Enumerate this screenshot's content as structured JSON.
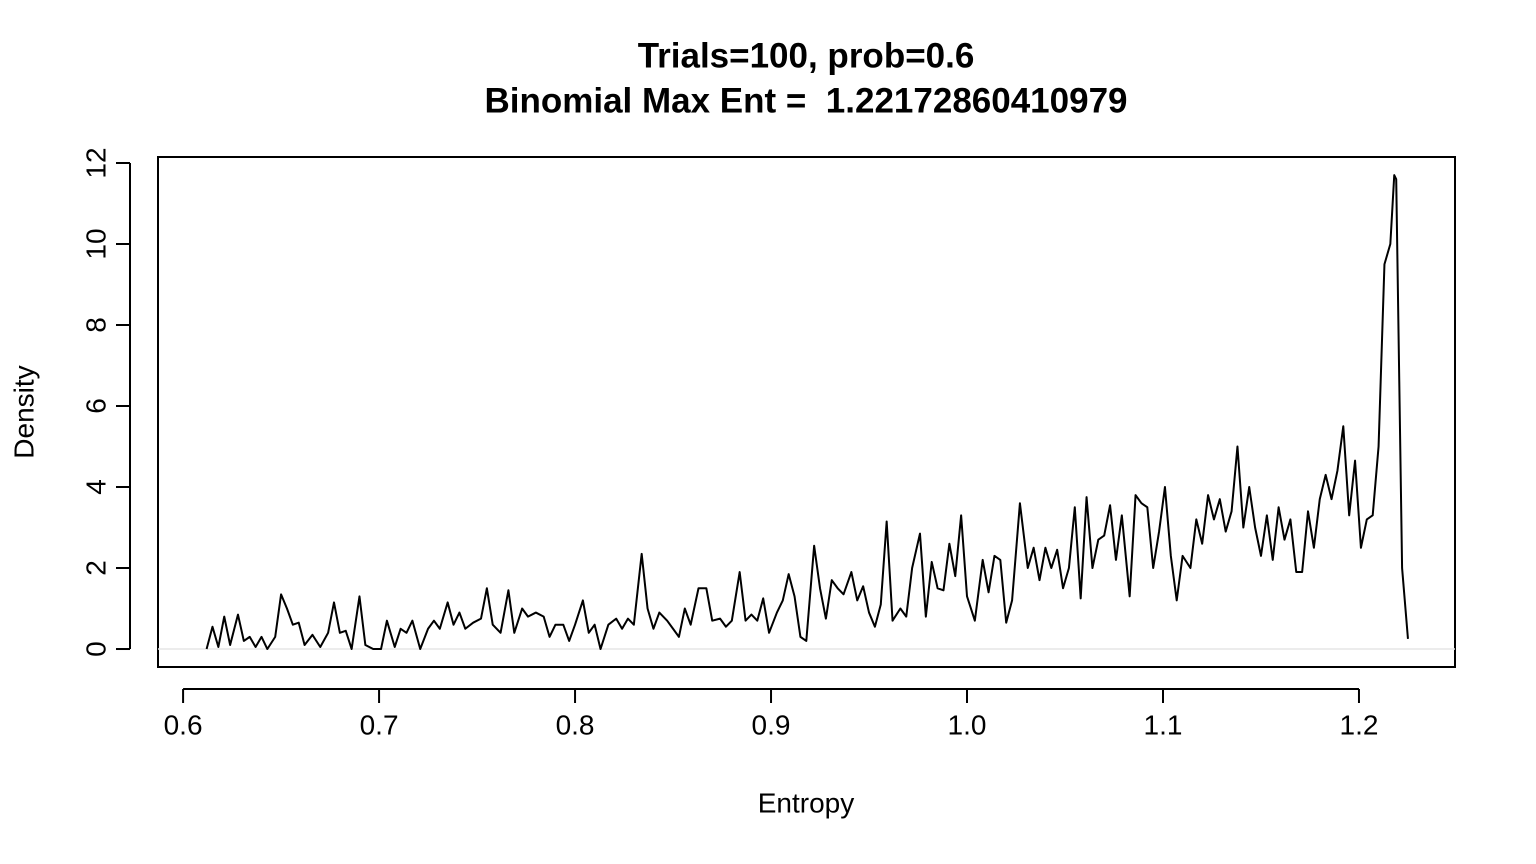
{
  "chart_data": {
    "type": "line",
    "title": "Trials=100, prob=0.6",
    "subtitle": "Binomial Max Ent =  1.22172860410979",
    "x_label": "Entropy",
    "y_label": "Density",
    "color": "#000000",
    "reference_line": 0,
    "xlim": [
      0.5872,
      1.249
    ],
    "ylim": [
      -0.444,
      12.148
    ],
    "xticks": [
      0.6,
      0.7,
      0.8,
      0.9,
      {
        "value": 1,
        "label": "1.0"
      },
      1.1,
      1.2
    ],
    "yticks": [
      0,
      2,
      4,
      6,
      8,
      10,
      12
    ],
    "x": [
      0.612,
      0.615,
      0.618,
      0.621,
      0.624,
      0.628,
      0.631,
      0.634,
      0.637,
      0.64,
      0.643,
      0.647,
      0.65,
      0.653,
      0.656,
      0.659,
      0.662,
      0.666,
      0.67,
      0.674,
      0.677,
      0.68,
      0.683,
      0.686,
      0.69,
      0.693,
      0.697,
      0.701,
      0.704,
      0.708,
      0.711,
      0.714,
      0.717,
      0.721,
      0.725,
      0.728,
      0.731,
      0.735,
      0.738,
      0.741,
      0.744,
      0.748,
      0.752,
      0.755,
      0.758,
      0.762,
      0.766,
      0.769,
      0.773,
      0.776,
      0.78,
      0.784,
      0.787,
      0.79,
      0.794,
      0.797,
      0.8,
      0.804,
      0.807,
      0.81,
      0.813,
      0.817,
      0.821,
      0.824,
      0.827,
      0.83,
      0.834,
      0.837,
      0.84,
      0.843,
      0.847,
      0.85,
      0.853,
      0.856,
      0.859,
      0.863,
      0.867,
      0.87,
      0.874,
      0.877,
      0.88,
      0.884,
      0.887,
      0.89,
      0.893,
      0.896,
      0.899,
      0.903,
      0.906,
      0.909,
      0.912,
      0.915,
      0.918,
      0.922,
      0.925,
      0.928,
      0.931,
      0.934,
      0.937,
      0.941,
      0.944,
      0.947,
      0.95,
      0.953,
      0.956,
      0.959,
      0.962,
      0.966,
      0.969,
      0.972,
      0.976,
      0.979,
      0.982,
      0.985,
      0.988,
      0.991,
      0.994,
      0.997,
      1.0,
      1.004,
      1.008,
      1.011,
      1.014,
      1.017,
      1.02,
      1.023,
      1.027,
      1.031,
      1.034,
      1.037,
      1.04,
      1.043,
      1.046,
      1.049,
      1.052,
      1.055,
      1.058,
      1.061,
      1.064,
      1.067,
      1.07,
      1.073,
      1.076,
      1.079,
      1.083,
      1.086,
      1.089,
      1.092,
      1.095,
      1.098,
      1.101,
      1.104,
      1.107,
      1.11,
      1.114,
      1.117,
      1.12,
      1.123,
      1.126,
      1.129,
      1.132,
      1.135,
      1.138,
      1.141,
      1.144,
      1.147,
      1.15,
      1.153,
      1.156,
      1.159,
      1.162,
      1.165,
      1.168,
      1.171,
      1.174,
      1.177,
      1.18,
      1.183,
      1.186,
      1.189,
      1.192,
      1.195,
      1.198,
      1.201,
      1.204,
      1.207,
      1.21,
      1.213,
      1.216,
      1.218,
      1.219,
      1.222,
      1.225
    ],
    "values": [
      0,
      0.55,
      0.05,
      0.8,
      0.1,
      0.85,
      0.2,
      0.3,
      0.05,
      0.3,
      0,
      0.3,
      1.35,
      1,
      0.6,
      0.65,
      0.1,
      0.35,
      0.05,
      0.4,
      1.15,
      0.4,
      0.45,
      0,
      1.3,
      0.1,
      0,
      0,
      0.7,
      0.05,
      0.5,
      0.4,
      0.7,
      0,
      0.5,
      0.7,
      0.5,
      1.15,
      0.6,
      0.9,
      0.5,
      0.65,
      0.75,
      1.5,
      0.6,
      0.4,
      1.45,
      0.4,
      1,
      0.8,
      0.9,
      0.8,
      0.3,
      0.6,
      0.6,
      0.2,
      0.6,
      1.2,
      0.4,
      0.6,
      0,
      0.6,
      0.75,
      0.5,
      0.75,
      0.6,
      2.35,
      1,
      0.5,
      0.9,
      0.7,
      0.5,
      0.3,
      1,
      0.6,
      1.5,
      1.5,
      0.7,
      0.75,
      0.55,
      0.7,
      1.9,
      0.7,
      0.85,
      0.7,
      1.25,
      0.4,
      0.9,
      1.2,
      1.85,
      1.3,
      0.3,
      0.2,
      2.55,
      1.5,
      0.75,
      1.7,
      1.5,
      1.35,
      1.9,
      1.2,
      1.55,
      0.9,
      0.55,
      1.1,
      3.15,
      0.7,
      1,
      0.8,
      2,
      2.85,
      0.8,
      2.15,
      1.5,
      1.45,
      2.6,
      1.8,
      3.3,
      1.3,
      0.7,
      2.2,
      1.4,
      2.3,
      2.2,
      0.65,
      1.2,
      3.6,
      2,
      2.5,
      1.7,
      2.5,
      2,
      2.45,
      1.5,
      2,
      3.5,
      1.25,
      3.75,
      2,
      2.7,
      2.8,
      3.55,
      2.2,
      3.3,
      1.3,
      3.8,
      3.6,
      3.5,
      2,
      2.9,
      4,
      2.3,
      1.2,
      2.3,
      2,
      3.2,
      2.6,
      3.8,
      3.2,
      3.7,
      2.9,
      3.4,
      5,
      3,
      4,
      3,
      2.3,
      3.3,
      2.2,
      3.5,
      2.7,
      3.2,
      1.9,
      1.9,
      3.4,
      2.5,
      3.7,
      4.3,
      3.7,
      4.4,
      5.5,
      3.3,
      4.65,
      2.5,
      3.2,
      3.3,
      5,
      9.5,
      10,
      11.7,
      11.6,
      2,
      0.25
    ]
  }
}
